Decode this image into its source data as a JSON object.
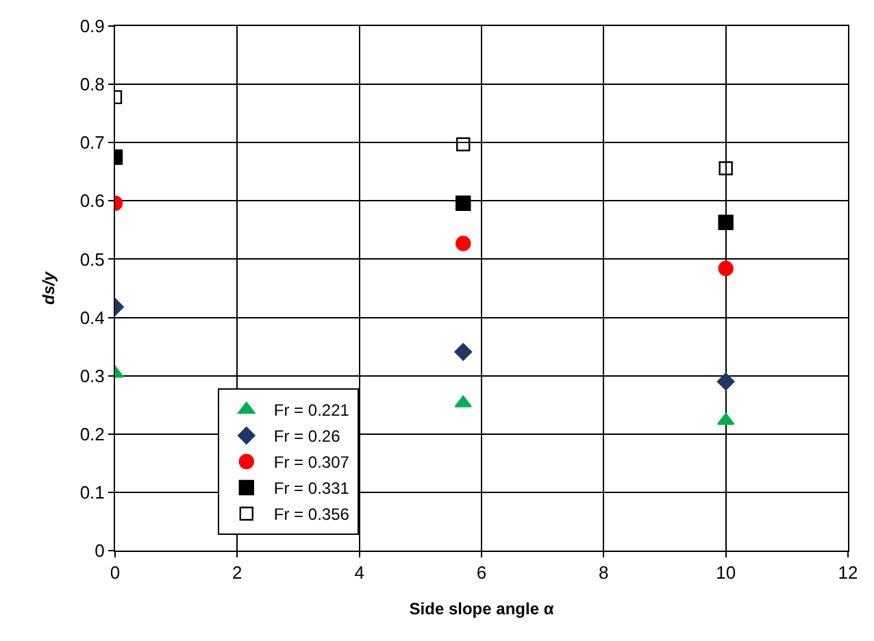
{
  "chart_data": {
    "type": "scatter",
    "xlabel": "Side slope angle α",
    "ylabel": "ds/y",
    "xlim": [
      0,
      12
    ],
    "xticks": [
      0,
      2,
      4,
      6,
      8,
      10,
      12
    ],
    "ylim": [
      0,
      0.9
    ],
    "yticks": [
      0,
      0.1,
      0.2,
      0.3,
      0.4,
      0.5,
      0.6,
      0.7,
      0.8,
      0.9
    ],
    "grid": true,
    "legend": "bottom left",
    "series": [
      {
        "name": "Fr = 0.221",
        "color": "#00b050",
        "marker": "triangle",
        "x": [
          0,
          5.7,
          10
        ],
        "values": [
          0.304,
          0.253,
          0.223
        ]
      },
      {
        "name": "Fr = 0.26",
        "color": "#1f3864",
        "marker": "diamond",
        "x": [
          0,
          5.7,
          10
        ],
        "values": [
          0.418,
          0.341,
          0.29
        ]
      },
      {
        "name": "Fr = 0.307",
        "color": "#ff0000",
        "marker": "circle",
        "x": [
          0,
          5.7,
          10
        ],
        "values": [
          0.596,
          0.527,
          0.484
        ]
      },
      {
        "name": "Fr = 0.331",
        "color": "#000000",
        "marker": "square",
        "x": [
          0,
          5.7,
          10
        ],
        "values": [
          0.675,
          0.596,
          0.563
        ]
      },
      {
        "name": "Fr = 0.356",
        "color": "#000000",
        "marker": "square-open",
        "x": [
          0,
          5.7,
          10
        ],
        "values": [
          0.778,
          0.697,
          0.656
        ]
      }
    ]
  }
}
